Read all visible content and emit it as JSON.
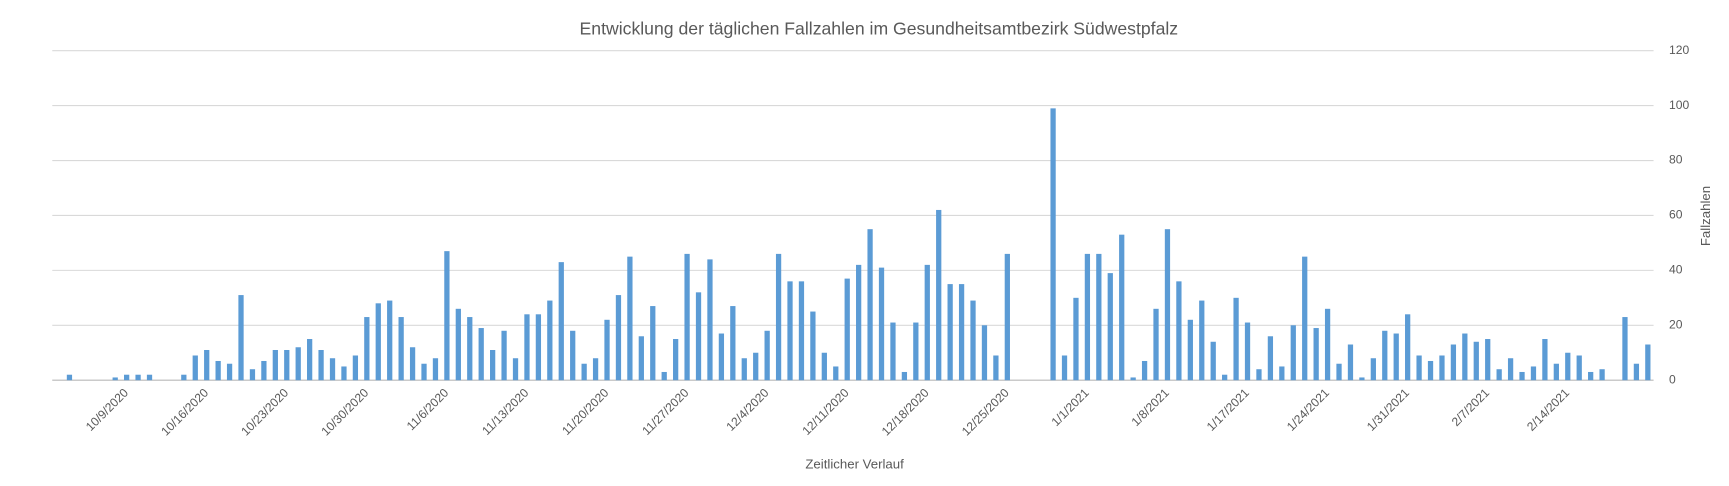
{
  "chart_data": {
    "type": "bar",
    "title": "Entwicklung der täglichen Fallzahlen im Gesundheitsamtbezirk Südwestpfalz",
    "x_label": "Zeitlicher Verlauf",
    "y_label": "Fallzahlen",
    "categories": [
      null,
      null,
      null,
      null,
      null,
      null,
      "10/9/2020",
      null,
      null,
      null,
      null,
      null,
      null,
      "10/16/2020",
      null,
      null,
      null,
      null,
      null,
      null,
      "10/23/2020",
      null,
      null,
      null,
      null,
      null,
      null,
      "10/30/2020",
      null,
      null,
      null,
      null,
      null,
      null,
      "11/6/2020",
      null,
      null,
      null,
      null,
      null,
      null,
      "11/13/2020",
      null,
      null,
      null,
      null,
      null,
      null,
      "11/20/2020",
      null,
      null,
      null,
      null,
      null,
      null,
      "11/27/2020",
      null,
      null,
      null,
      null,
      null,
      null,
      "12/4/2020",
      null,
      null,
      null,
      null,
      null,
      null,
      "12/11/2020",
      null,
      null,
      null,
      null,
      null,
      null,
      "12/18/2020",
      null,
      null,
      null,
      null,
      null,
      null,
      "12/25/2020",
      null,
      null,
      null,
      null,
      null,
      null,
      "1/1/2021",
      null,
      null,
      null,
      null,
      null,
      null,
      "1/8/2021",
      null,
      null,
      null,
      null,
      null,
      null,
      "1/17/2021",
      null,
      null,
      null,
      null,
      null,
      null,
      "1/24/2021",
      null,
      null,
      null,
      null,
      null,
      null,
      "1/31/2021",
      null,
      null,
      null,
      null,
      null,
      null,
      "2/7/2021",
      null,
      null,
      null,
      null,
      null,
      null,
      "2/14/2021",
      null,
      null,
      null,
      null,
      null,
      null,
      null
    ],
    "values": [
      0,
      2,
      0,
      0,
      0,
      1,
      2,
      2,
      2,
      0,
      0,
      2,
      9,
      11,
      7,
      6,
      31,
      4,
      7,
      11,
      11,
      12,
      15,
      11,
      8,
      5,
      9,
      23,
      28,
      29,
      23,
      12,
      6,
      8,
      47,
      26,
      23,
      19,
      11,
      18,
      8,
      24,
      24,
      29,
      43,
      18,
      6,
      8,
      22,
      31,
      45,
      16,
      27,
      3,
      15,
      46,
      32,
      44,
      17,
      27,
      8,
      10,
      18,
      46,
      36,
      36,
      25,
      10,
      5,
      37,
      42,
      55,
      41,
      21,
      3,
      21,
      42,
      62,
      35,
      35,
      29,
      20,
      9,
      46,
      0,
      0,
      0,
      99,
      9,
      30,
      46,
      46,
      39,
      53,
      1,
      7,
      26,
      55,
      36,
      22,
      29,
      14,
      2,
      30,
      21,
      4,
      16,
      5,
      20,
      45,
      19,
      26,
      6,
      13,
      1,
      8,
      18,
      17,
      24,
      9,
      7,
      9,
      13,
      17,
      14,
      15,
      4,
      8,
      3,
      5,
      15,
      6,
      10,
      9,
      3,
      4,
      0,
      23,
      6,
      13
    ],
    "color": "#5b9bd5",
    "ylim": [
      0,
      120
    ],
    "yticks": [
      0,
      20,
      40,
      60,
      80,
      100,
      120
    ],
    "grid": true,
    "y_axis_side": "right"
  }
}
